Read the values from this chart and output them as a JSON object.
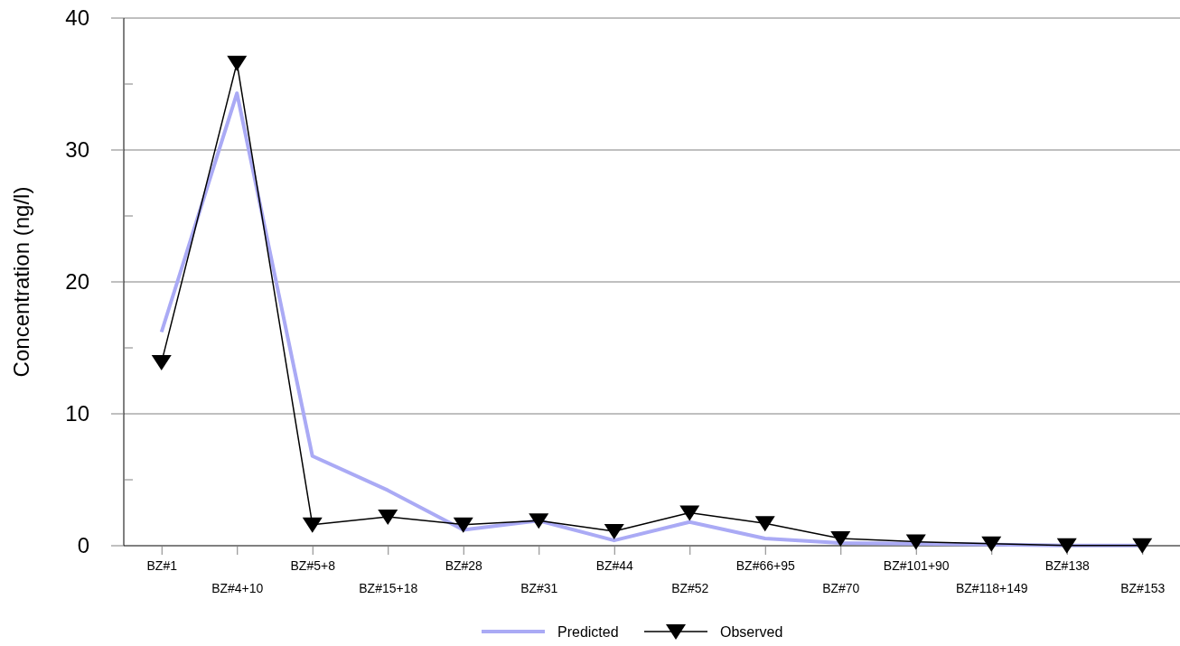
{
  "chart_data": {
    "type": "line",
    "ylabel": "Concentration (ng/l)",
    "categories": [
      "BZ#1",
      "BZ#4+10",
      "BZ#5+8",
      "BZ#15+18",
      "BZ#28",
      "BZ#31",
      "BZ#44",
      "BZ#52",
      "BZ#66+95",
      "BZ#70",
      "BZ#101+90",
      "BZ#118+149",
      "BZ#138",
      "BZ#153"
    ],
    "series": [
      {
        "name": "Predicted",
        "color": "#aaaaf5",
        "marker": "none",
        "values": [
          16.2,
          34.3,
          6.8,
          4.2,
          1.2,
          1.9,
          0.4,
          1.8,
          0.55,
          0.2,
          0.15,
          0.08,
          0.02,
          0.02
        ]
      },
      {
        "name": "Observed",
        "color": "#000000",
        "marker": "triangle",
        "values": [
          13.9,
          36.6,
          1.6,
          2.2,
          1.6,
          1.9,
          1.1,
          2.5,
          1.7,
          0.55,
          0.3,
          0.15,
          0.02,
          0.02
        ]
      }
    ],
    "ylim": [
      0,
      40
    ],
    "yticks": [
      0,
      {
        "value": 5,
        "label": null
      },
      10,
      {
        "value": 15,
        "label": null
      },
      20,
      {
        "value": 25,
        "label": null
      },
      30,
      {
        "value": 35,
        "label": null
      },
      40
    ],
    "grid": "y",
    "legend": "bottom"
  }
}
